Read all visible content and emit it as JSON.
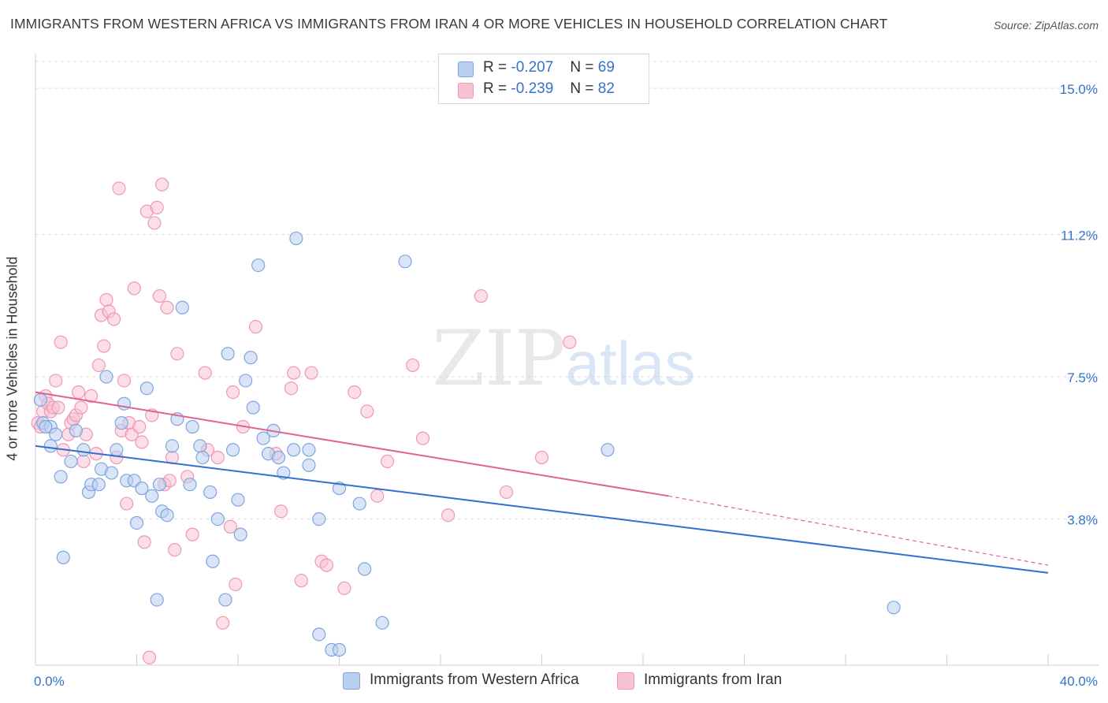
{
  "header": {
    "title": "IMMIGRANTS FROM WESTERN AFRICA VS IMMIGRANTS FROM IRAN 4 OR MORE VEHICLES IN HOUSEHOLD CORRELATION CHART",
    "source": "Source: ZipAtlas.com"
  },
  "legend": {
    "r_label": "R =",
    "n_label": "N =",
    "series": [
      {
        "r": "-0.207",
        "n": "69"
      },
      {
        "r": "-0.239",
        "n": "82"
      }
    ]
  },
  "watermark": {
    "zip": "ZIP",
    "atlas": "atlas"
  },
  "colors": {
    "blue_fill": "#b9d0f1",
    "blue_stroke": "#7ea5de",
    "blue_line": "#2f6fd0",
    "pink_fill": "#f7c3d3",
    "pink_stroke": "#ee98b5",
    "pink_line": "#e2628e",
    "axis_label": "#3572c9"
  },
  "chart_data": {
    "type": "scatter",
    "title": "IMMIGRANTS FROM WESTERN AFRICA VS IMMIGRANTS FROM IRAN 4 OR MORE VEHICLES IN HOUSEHOLD CORRELATION CHART",
    "xlabel": "",
    "ylabel": "4 or more Vehicles in Household",
    "xlim": [
      0,
      40
    ],
    "ylim": [
      0,
      15.7
    ],
    "x_ticks": [
      0,
      4,
      8,
      12,
      16,
      20,
      24,
      28,
      32,
      36,
      40
    ],
    "x_tick_labels": {
      "first": "0.0%",
      "last": "40.0%"
    },
    "y_gridlines": [
      3.8,
      7.5,
      11.2,
      15.0
    ],
    "y_tick_labels": [
      "3.8%",
      "7.5%",
      "11.2%",
      "15.0%"
    ],
    "series": [
      {
        "name": "Immigrants from Western Africa",
        "r": -0.207,
        "n": 69,
        "trend": {
          "x": [
            0,
            40
          ],
          "y": [
            5.7,
            2.4
          ]
        },
        "points": [
          [
            0.3,
            6.3
          ],
          [
            0.6,
            6.2
          ],
          [
            0.8,
            6.0
          ],
          [
            0.6,
            5.7
          ],
          [
            1.0,
            4.9
          ],
          [
            1.4,
            5.3
          ],
          [
            1.6,
            6.1
          ],
          [
            1.9,
            5.6
          ],
          [
            2.1,
            4.5
          ],
          [
            2.2,
            4.7
          ],
          [
            2.5,
            4.7
          ],
          [
            2.6,
            5.1
          ],
          [
            2.8,
            7.5
          ],
          [
            3.0,
            5.0
          ],
          [
            3.2,
            5.6
          ],
          [
            3.4,
            6.3
          ],
          [
            3.5,
            6.8
          ],
          [
            3.6,
            4.8
          ],
          [
            3.9,
            4.8
          ],
          [
            4.0,
            3.7
          ],
          [
            4.2,
            4.6
          ],
          [
            4.4,
            7.2
          ],
          [
            4.6,
            4.4
          ],
          [
            4.9,
            4.7
          ],
          [
            5.0,
            4.0
          ],
          [
            5.2,
            3.9
          ],
          [
            5.4,
            5.7
          ],
          [
            5.6,
            6.4
          ],
          [
            5.8,
            9.3
          ],
          [
            6.1,
            4.7
          ],
          [
            6.2,
            6.2
          ],
          [
            6.5,
            5.7
          ],
          [
            6.6,
            5.4
          ],
          [
            6.9,
            4.5
          ],
          [
            7.0,
            2.7
          ],
          [
            7.2,
            3.8
          ],
          [
            7.5,
            1.7
          ],
          [
            7.6,
            8.1
          ],
          [
            7.8,
            5.6
          ],
          [
            8.0,
            4.3
          ],
          [
            8.1,
            3.4
          ],
          [
            8.3,
            7.4
          ],
          [
            8.5,
            8.0
          ],
          [
            8.6,
            6.7
          ],
          [
            8.8,
            10.4
          ],
          [
            9.0,
            5.9
          ],
          [
            9.2,
            5.5
          ],
          [
            9.4,
            6.1
          ],
          [
            9.6,
            5.4
          ],
          [
            9.8,
            5.0
          ],
          [
            10.2,
            5.6
          ],
          [
            10.3,
            11.1
          ],
          [
            10.8,
            5.6
          ],
          [
            10.8,
            5.2
          ],
          [
            11.2,
            3.8
          ],
          [
            11.2,
            0.8
          ],
          [
            11.7,
            0.4
          ],
          [
            12.0,
            0.4
          ],
          [
            12.0,
            4.6
          ],
          [
            12.8,
            4.2
          ],
          [
            13.0,
            2.5
          ],
          [
            13.7,
            1.1
          ],
          [
            14.6,
            10.5
          ],
          [
            22.6,
            5.6
          ],
          [
            33.9,
            1.5
          ],
          [
            1.1,
            2.8
          ],
          [
            4.8,
            1.7
          ],
          [
            0.4,
            6.2
          ],
          [
            0.2,
            6.9
          ]
        ]
      },
      {
        "name": "Immigrants from Iran",
        "r": -0.239,
        "n": 82,
        "trend": {
          "x": [
            0,
            25
          ],
          "y": [
            7.1,
            4.4
          ]
        },
        "trend_dashed": {
          "x": [
            25,
            40
          ],
          "y": [
            4.4,
            2.6
          ]
        },
        "points": [
          [
            0.1,
            6.3
          ],
          [
            0.2,
            6.2
          ],
          [
            0.3,
            6.6
          ],
          [
            0.4,
            7.0
          ],
          [
            0.5,
            6.8
          ],
          [
            0.6,
            6.6
          ],
          [
            0.7,
            6.7
          ],
          [
            0.8,
            7.4
          ],
          [
            0.9,
            6.7
          ],
          [
            1.0,
            8.4
          ],
          [
            1.1,
            5.6
          ],
          [
            1.3,
            6.0
          ],
          [
            1.4,
            6.3
          ],
          [
            1.5,
            6.4
          ],
          [
            1.6,
            6.5
          ],
          [
            1.7,
            7.1
          ],
          [
            1.8,
            6.7
          ],
          [
            1.9,
            5.3
          ],
          [
            2.0,
            6.0
          ],
          [
            2.2,
            7.0
          ],
          [
            2.4,
            5.5
          ],
          [
            2.5,
            7.8
          ],
          [
            2.6,
            9.1
          ],
          [
            2.7,
            8.3
          ],
          [
            2.8,
            9.5
          ],
          [
            2.9,
            9.2
          ],
          [
            3.1,
            9.0
          ],
          [
            3.2,
            5.4
          ],
          [
            3.3,
            12.4
          ],
          [
            3.4,
            6.1
          ],
          [
            3.5,
            7.4
          ],
          [
            3.6,
            4.2
          ],
          [
            3.7,
            6.3
          ],
          [
            3.8,
            6.0
          ],
          [
            3.9,
            9.8
          ],
          [
            4.1,
            6.2
          ],
          [
            4.2,
            5.8
          ],
          [
            4.3,
            3.2
          ],
          [
            4.4,
            11.8
          ],
          [
            4.5,
            0.2
          ],
          [
            4.6,
            6.5
          ],
          [
            4.7,
            11.5
          ],
          [
            4.8,
            11.9
          ],
          [
            4.9,
            9.6
          ],
          [
            5.0,
            12.5
          ],
          [
            5.1,
            4.7
          ],
          [
            5.2,
            9.3
          ],
          [
            5.3,
            4.8
          ],
          [
            5.4,
            5.4
          ],
          [
            5.5,
            3.0
          ],
          [
            5.6,
            8.1
          ],
          [
            6.0,
            4.9
          ],
          [
            6.2,
            3.4
          ],
          [
            6.7,
            7.6
          ],
          [
            6.8,
            5.6
          ],
          [
            7.2,
            5.4
          ],
          [
            7.4,
            1.1
          ],
          [
            7.7,
            3.6
          ],
          [
            7.8,
            7.1
          ],
          [
            7.9,
            2.1
          ],
          [
            8.2,
            6.2
          ],
          [
            8.7,
            8.8
          ],
          [
            9.5,
            5.5
          ],
          [
            9.7,
            4.0
          ],
          [
            10.1,
            7.2
          ],
          [
            10.2,
            7.6
          ],
          [
            10.5,
            2.2
          ],
          [
            10.9,
            7.6
          ],
          [
            11.3,
            2.7
          ],
          [
            11.5,
            2.6
          ],
          [
            12.2,
            2.0
          ],
          [
            12.6,
            7.1
          ],
          [
            13.1,
            6.6
          ],
          [
            13.5,
            4.4
          ],
          [
            13.9,
            5.3
          ],
          [
            14.9,
            7.8
          ],
          [
            15.3,
            5.9
          ],
          [
            16.3,
            3.9
          ],
          [
            17.6,
            9.6
          ],
          [
            18.6,
            4.5
          ],
          [
            20.0,
            5.4
          ],
          [
            21.1,
            8.4
          ]
        ]
      }
    ]
  }
}
